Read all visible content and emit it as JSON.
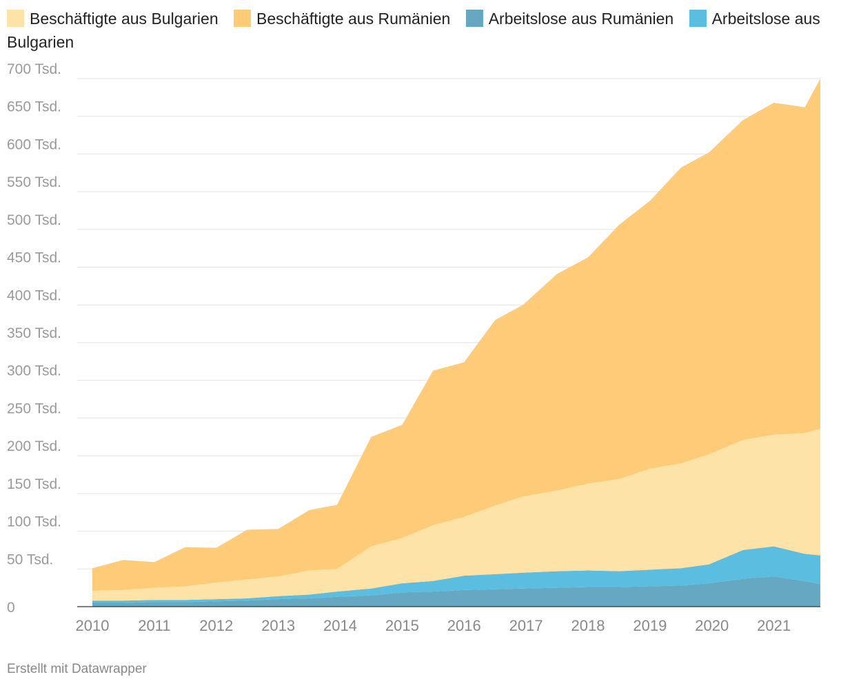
{
  "chart_data": {
    "type": "area",
    "stacked": true,
    "title": "",
    "xlabel": "",
    "ylabel": "",
    "ylim": [
      0,
      700000
    ],
    "y_ticks": [
      0,
      50000,
      100000,
      150000,
      200000,
      250000,
      300000,
      350000,
      400000,
      450000,
      500000,
      550000,
      600000,
      650000,
      700000
    ],
    "y_tick_labels": [
      "0",
      "50 Tsd.",
      "100 Tsd.",
      "150 Tsd.",
      "200 Tsd.",
      "250 Tsd.",
      "300 Tsd.",
      "350 Tsd.",
      "400 Tsd.",
      "450 Tsd.",
      "500 Tsd.",
      "550 Tsd.",
      "600 Tsd.",
      "650 Tsd.",
      "700 Tsd."
    ],
    "x_range": [
      2010.0,
      2021.75
    ],
    "x_ticks": [
      2010,
      2011,
      2012,
      2013,
      2014,
      2015,
      2016,
      2017,
      2018,
      2019,
      2020,
      2021
    ],
    "x_tick_labels": [
      "2010",
      "2011",
      "2012",
      "2013",
      "2014",
      "2015",
      "2016",
      "2017",
      "2018",
      "2019",
      "2020",
      "2021"
    ],
    "x": [
      2010.0,
      2010.5,
      2011.0,
      2011.5,
      2012.0,
      2012.5,
      2013.0,
      2013.5,
      2013.95,
      2014.5,
      2015.0,
      2015.5,
      2016.0,
      2016.5,
      2016.95,
      2017.5,
      2018.0,
      2018.5,
      2019.0,
      2019.5,
      2019.95,
      2020.5,
      2021.0,
      2021.5,
      2021.75
    ],
    "legend_position": "top",
    "series": [
      {
        "name": "Arbeitslose aus Rumänien",
        "color": "#66a8c1",
        "values": [
          5000,
          5000,
          6000,
          6000,
          7000,
          8000,
          10000,
          11000,
          13000,
          15000,
          19000,
          20000,
          22000,
          23000,
          24000,
          25000,
          26000,
          26000,
          27000,
          28000,
          31000,
          37000,
          40000,
          34000,
          30000
        ]
      },
      {
        "name": "Arbeitslose aus Bulgarien",
        "color": "#5bbde0",
        "values": [
          3000,
          3000,
          3000,
          3000,
          3000,
          3000,
          4000,
          5000,
          7000,
          9000,
          12000,
          14000,
          19000,
          20000,
          21000,
          22000,
          22000,
          21000,
          22000,
          23000,
          25000,
          38000,
          40000,
          36000,
          38000
        ]
      },
      {
        "name": "Beschäftigte aus Bulgarien",
        "color": "#fde3a7",
        "values": [
          13000,
          14000,
          16000,
          18000,
          22000,
          25000,
          26000,
          32000,
          30000,
          56000,
          60000,
          74000,
          78000,
          91000,
          101000,
          107000,
          115000,
          122000,
          134000,
          139000,
          146000,
          146000,
          148000,
          160000,
          168000
        ]
      },
      {
        "name": "Beschäftigte aus Rumänien",
        "color": "#fecc79",
        "values": [
          30000,
          40000,
          34000,
          52000,
          46000,
          66000,
          63000,
          80000,
          85000,
          145000,
          150000,
          205000,
          205000,
          246000,
          254000,
          287000,
          300000,
          337000,
          355000,
          392000,
          400000,
          424000,
          440000,
          432000,
          464000
        ]
      }
    ]
  },
  "legend": [
    {
      "label": "Beschäftigte aus Bulgarien",
      "color": "#fde3a7"
    },
    {
      "label": "Beschäftigte aus Rumänien",
      "color": "#fecc79"
    },
    {
      "label": "Arbeitslose aus Rumänien",
      "color": "#66a8c1"
    },
    {
      "label": "Arbeitslose aus Bulgarien",
      "color": "#5bbde0"
    }
  ],
  "footer": {
    "credit": "Erstellt mit Datawrapper"
  }
}
